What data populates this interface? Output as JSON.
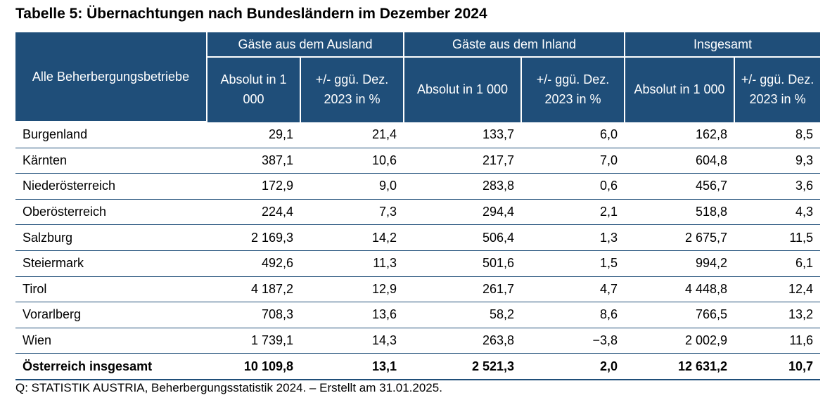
{
  "title": "Tabelle 5: Übernachtungen nach Bundesländern im Dezember 2024",
  "header": {
    "row_label": "Alle Beherbergungsbetriebe",
    "groups": [
      "Gäste aus dem Ausland",
      "Gäste aus dem Inland",
      "Insgesamt"
    ],
    "sub": {
      "abs": "Absolut in 1 000",
      "pct": "+/- ggü. Dez. 2023 in %"
    }
  },
  "rows": [
    {
      "name": "Burgenland",
      "v": [
        "29,1",
        "21,4",
        "133,7",
        "6,0",
        "162,8",
        "8,5"
      ]
    },
    {
      "name": "Kärnten",
      "v": [
        "387,1",
        "10,6",
        "217,7",
        "7,0",
        "604,8",
        "9,3"
      ]
    },
    {
      "name": "Niederösterreich",
      "v": [
        "172,9",
        "9,0",
        "283,8",
        "0,6",
        "456,7",
        "3,6"
      ]
    },
    {
      "name": "Oberösterreich",
      "v": [
        "224,4",
        "7,3",
        "294,4",
        "2,1",
        "518,8",
        "4,3"
      ]
    },
    {
      "name": "Salzburg",
      "v": [
        "2 169,3",
        "14,2",
        "506,4",
        "1,3",
        "2 675,7",
        "11,5"
      ]
    },
    {
      "name": "Steiermark",
      "v": [
        "492,6",
        "11,3",
        "501,6",
        "1,5",
        "994,2",
        "6,1"
      ]
    },
    {
      "name": "Tirol",
      "v": [
        "4 187,2",
        "12,9",
        "261,7",
        "4,7",
        "4 448,8",
        "12,4"
      ]
    },
    {
      "name": "Vorarlberg",
      "v": [
        "708,3",
        "13,6",
        "58,2",
        "8,6",
        "766,5",
        "13,2"
      ]
    },
    {
      "name": "Wien",
      "v": [
        "1 739,1",
        "14,3",
        "263,8",
        "−3,8",
        "2 002,9",
        "11,6"
      ]
    },
    {
      "name": "Österreich insgesamt",
      "v": [
        "10 109,8",
        "13,1",
        "2 521,3",
        "2,0",
        "12 631,2",
        "10,7"
      ]
    }
  ],
  "source": "Q: STATISTIK AUSTRIA, Beherbergungsstatistik 2024. – Erstellt am 31.01.2025.",
  "colors": {
    "header_bg": "#1f4e79",
    "header_text": "#ffffff",
    "rule": "#1f4e79"
  }
}
